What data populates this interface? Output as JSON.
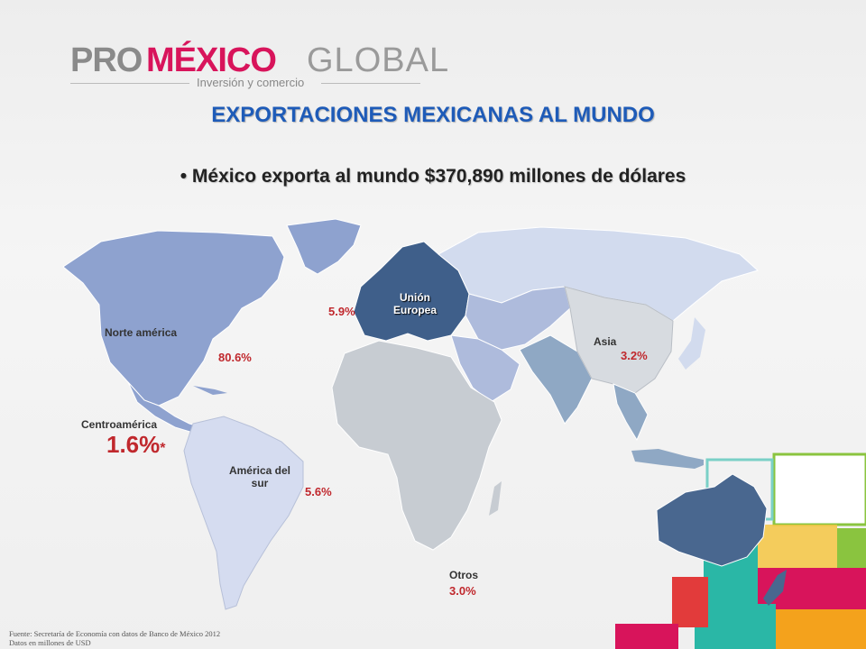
{
  "logo": {
    "pro": "PRO",
    "mexico": "MÉXICO",
    "global": "GLOBAL",
    "tagline": "Inversión y comercio"
  },
  "title": "EXPORTACIONES MEXICANAS AL MUNDO",
  "bullet": "• México exporta al mundo $370,890 millones de dólares",
  "regions": {
    "norte_america": {
      "label": "Norte américa",
      "pct": "80.6%"
    },
    "union_europea": {
      "label_1": "Unión",
      "label_2": "Europea",
      "pct": "5.9%"
    },
    "asia": {
      "label": "Asia",
      "pct": "3.2%"
    },
    "centroamerica": {
      "label": "Centroamérica",
      "pct": "1.6%",
      "marker": "*"
    },
    "america_del_sur": {
      "label_1": "América del",
      "label_2": "sur",
      "pct": "5.6%"
    },
    "otros": {
      "label": "Otros",
      "pct": "3.0%"
    }
  },
  "source": {
    "line1": "Fuente: Secretaría de Economía con datos de Banco de México 2012",
    "line2": "Datos en millones de USD"
  },
  "colors": {
    "title": "#1e5bb8",
    "pct": "#c0282d",
    "north_america": "#8ea2cf",
    "europe": "#3f5f8a",
    "russia": "#d2dbee",
    "central_asia": "#aebbdc",
    "south_asia": "#8fa8c4",
    "africa": "#c7ccd2",
    "south_america": "#d5dcf0",
    "australia": "#49678f"
  }
}
